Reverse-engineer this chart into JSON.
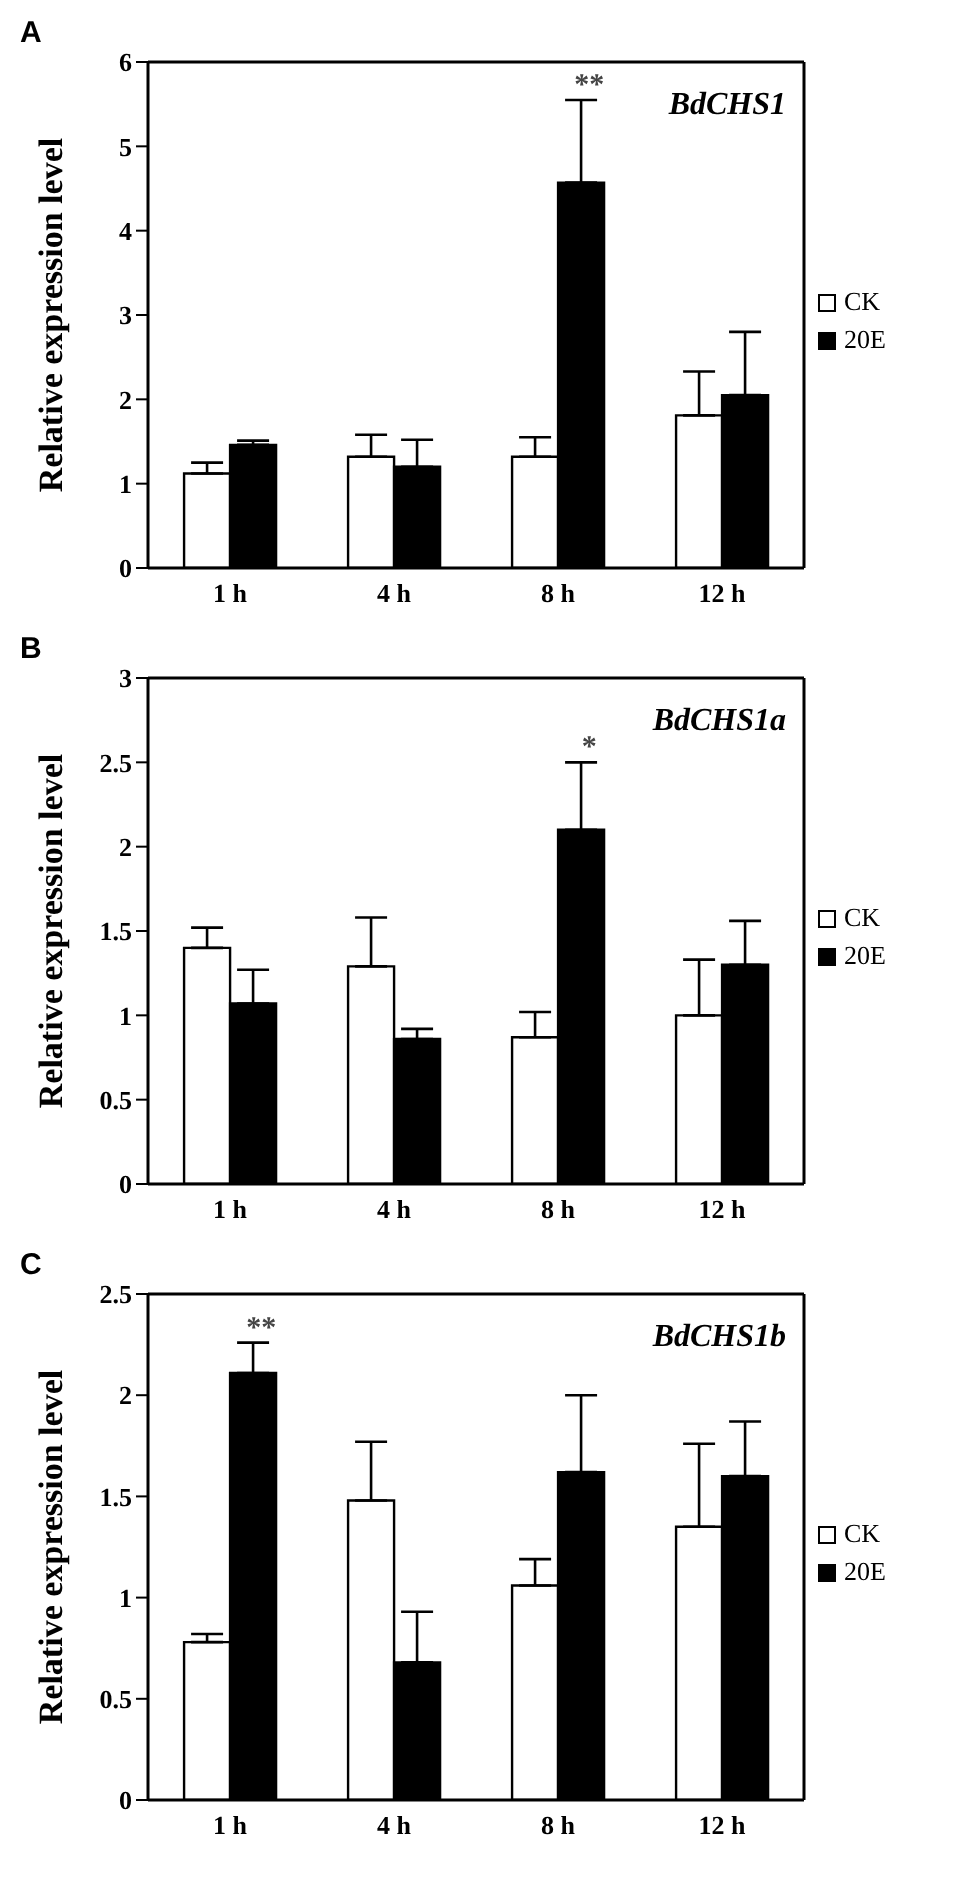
{
  "chart_data": [
    {
      "type": "bar",
      "title": "A",
      "subtitle": "BdCHS1",
      "ylabel": "Relative expression level",
      "categories": [
        "1 h",
        "4 h",
        "8 h",
        "12 h"
      ],
      "series": [
        {
          "name": "CK",
          "color": "#ffffff",
          "values": [
            1.12,
            1.32,
            1.32,
            1.81
          ],
          "errors": [
            [
              1.12,
              1.25
            ],
            [
              1.32,
              1.58
            ],
            [
              1.32,
              1.55
            ],
            [
              1.81,
              2.33
            ]
          ]
        },
        {
          "name": "20E",
          "color": "#000000",
          "values": [
            1.46,
            1.2,
            4.57,
            2.05
          ],
          "errors": [
            [
              1.46,
              1.51
            ],
            [
              1.2,
              1.52
            ],
            [
              4.57,
              5.55
            ],
            [
              2.05,
              2.8
            ]
          ]
        }
      ],
      "ylim": [
        0,
        6
      ],
      "yticks": [
        0,
        1,
        2,
        3,
        4,
        5,
        6
      ],
      "grid": false,
      "legend": "right",
      "annotations": [
        {
          "text": "**",
          "x": "8 h",
          "y": 5.55
        }
      ]
    },
    {
      "type": "bar",
      "title": "B",
      "subtitle": "BdCHS1a",
      "ylabel": "Relative expression level",
      "categories": [
        "1 h",
        "4 h",
        "8 h",
        "12 h"
      ],
      "series": [
        {
          "name": "CK",
          "color": "#ffffff",
          "values": [
            1.4,
            1.29,
            0.87,
            1.0
          ],
          "errors": [
            [
              1.4,
              1.52
            ],
            [
              1.29,
              1.58
            ],
            [
              0.87,
              1.02
            ],
            [
              1.0,
              1.33
            ]
          ]
        },
        {
          "name": "20E",
          "color": "#000000",
          "values": [
            1.07,
            0.86,
            2.1,
            1.3
          ],
          "errors": [
            [
              1.07,
              1.27
            ],
            [
              0.86,
              0.92
            ],
            [
              2.1,
              2.5
            ],
            [
              1.3,
              1.56
            ]
          ]
        }
      ],
      "ylim": [
        0,
        3
      ],
      "yticks": [
        0,
        0.5,
        1,
        1.5,
        2,
        2.5,
        3
      ],
      "grid": false,
      "legend": "right",
      "annotations": [
        {
          "text": "*",
          "x": "8 h",
          "y": 2.5
        }
      ]
    },
    {
      "type": "bar",
      "title": "C",
      "subtitle": "BdCHS1b",
      "ylabel": "Relative expression level",
      "categories": [
        "1 h",
        "4 h",
        "8 h",
        "12 h"
      ],
      "series": [
        {
          "name": "CK",
          "color": "#ffffff",
          "values": [
            0.78,
            1.48,
            1.06,
            1.35
          ],
          "errors": [
            [
              0.78,
              0.82
            ],
            [
              1.48,
              1.77
            ],
            [
              1.06,
              1.19
            ],
            [
              1.35,
              1.76
            ]
          ]
        },
        {
          "name": "20E",
          "color": "#000000",
          "values": [
            2.11,
            0.68,
            1.62,
            1.6
          ],
          "errors": [
            [
              2.11,
              2.26
            ],
            [
              0.68,
              0.93
            ],
            [
              1.62,
              2.0
            ],
            [
              1.6,
              1.87
            ]
          ]
        }
      ],
      "ylim": [
        0,
        2.5
      ],
      "yticks": [
        0,
        0.5,
        1,
        1.5,
        2,
        2.5
      ],
      "grid": false,
      "legend": "right",
      "annotations": [
        {
          "text": "**",
          "x": "1 h",
          "y": 2.26
        }
      ]
    }
  ]
}
